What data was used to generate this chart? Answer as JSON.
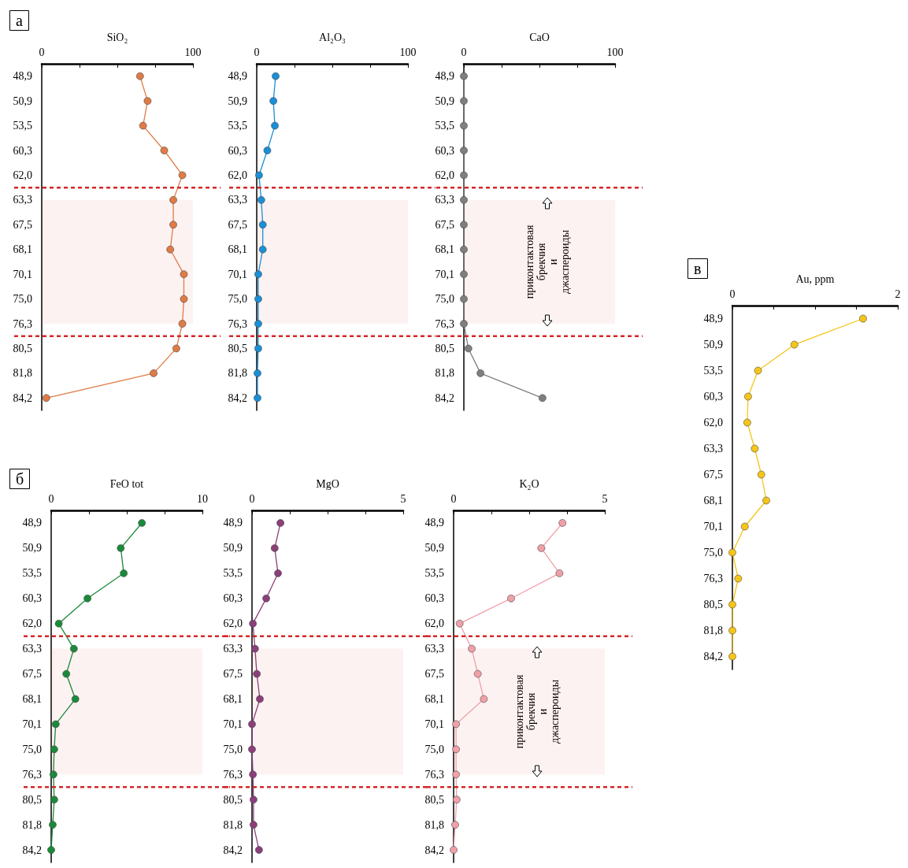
{
  "chart_data": [
    {
      "type": "line",
      "orientation": "horizontal",
      "title": "а",
      "xlabel": "SiO₂",
      "categories": [
        "48,9",
        "50,9",
        "53,5",
        "60,3",
        "62,0",
        "63,3",
        "67,5",
        "68,1",
        "70,1",
        "75,0",
        "76,3",
        "80,5",
        "81,8",
        "84,2"
      ],
      "values": [
        65,
        70,
        67,
        81,
        93,
        87,
        87,
        85,
        94,
        94,
        93,
        89,
        74,
        3
      ],
      "color": "#e07b45",
      "xlim": [
        0,
        100
      ],
      "xticks": [
        0,
        {
          "value": 25,
          "label": null
        },
        {
          "value": 50,
          "label": null
        },
        {
          "value": 75,
          "label": null
        },
        100
      ],
      "marker": "circle",
      "bands": [
        {
          "axis": "y",
          "from": "63,3",
          "to": "76,3",
          "color": "#d62728"
        }
      ]
    },
    {
      "type": "line",
      "orientation": "horizontal",
      "xlabel": "Al₂O₃",
      "categories": [
        "48,9",
        "50,9",
        "53,5",
        "60,3",
        "62,0",
        "63,3",
        "67,5",
        "68,1",
        "70,1",
        "75,0",
        "76,3",
        "80,5",
        "81,8",
        "84,2"
      ],
      "values": [
        12.5,
        11,
        12,
        7,
        1.5,
        3,
        4,
        4,
        1,
        1,
        1,
        1,
        0.5,
        0.5
      ],
      "color": "#1a8fd6",
      "xlim": [
        0,
        100
      ],
      "xticks": [
        0,
        {
          "value": 25,
          "label": null
        },
        {
          "value": 50,
          "label": null
        },
        {
          "value": 75,
          "label": null
        },
        100
      ],
      "marker": "circle",
      "bands": [
        {
          "axis": "y",
          "from": "63,3",
          "to": "76,3",
          "color": "#d62728"
        }
      ]
    },
    {
      "type": "line",
      "orientation": "horizontal",
      "xlabel": "CaO",
      "categories": [
        "48,9",
        "50,9",
        "53,5",
        "60,3",
        "62,0",
        "63,3",
        "67,5",
        "68,1",
        "70,1",
        "75,0",
        "76,3",
        "80,5",
        "81,8",
        "84,2"
      ],
      "values": [
        0,
        0,
        0,
        0,
        0,
        0,
        0,
        0,
        0,
        0,
        0,
        3,
        11,
        52
      ],
      "color": "#7f7f7f",
      "xlim": [
        0,
        100
      ],
      "xticks": [
        0,
        {
          "value": 25,
          "label": null
        },
        {
          "value": 50,
          "label": null
        },
        {
          "value": 75,
          "label": null
        },
        100
      ],
      "marker": "circle",
      "bands": [
        {
          "axis": "y",
          "from": "63,3",
          "to": "76,3",
          "color": "#d62728",
          "label": "приконтактовая брекчия и джаспероиды"
        }
      ]
    },
    {
      "type": "line",
      "orientation": "horizontal",
      "title": "б",
      "xlabel": "FeO tot",
      "categories": [
        "48,9",
        "50,9",
        "53,5",
        "60,3",
        "62,0",
        "63,3",
        "67,5",
        "68,1",
        "70,1",
        "75,0",
        "76,3",
        "80,5",
        "81,8",
        "84,2"
      ],
      "values": [
        6,
        4.6,
        4.8,
        2.4,
        0.5,
        1.5,
        1.0,
        1.6,
        0.3,
        0.2,
        0.15,
        0.2,
        0.1,
        0
      ],
      "color": "#1a8a3a",
      "xlim": [
        0,
        10
      ],
      "xticks": [
        0,
        {
          "value": 2.5,
          "label": null
        },
        {
          "value": 5,
          "label": null
        },
        {
          "value": 7.5,
          "label": null
        },
        10
      ],
      "marker": "circle",
      "bands": [
        {
          "axis": "y",
          "from": "63,3",
          "to": "76,3",
          "color": "#d62728"
        }
      ]
    },
    {
      "type": "line",
      "orientation": "horizontal",
      "xlabel": "MgO",
      "categories": [
        "48,9",
        "50,9",
        "53,5",
        "60,3",
        "62,0",
        "63,3",
        "67,5",
        "68,1",
        "70,1",
        "75,0",
        "76,3",
        "80,5",
        "81,8",
        "84,2"
      ],
      "values": [
        0.94,
        0.75,
        0.86,
        0.47,
        0.03,
        0.1,
        0.16,
        0.26,
        0,
        0,
        0.03,
        0.05,
        0.05,
        0.23
      ],
      "color": "#8b3f7a",
      "xlim": [
        0,
        5
      ],
      "xticks": [
        0,
        {
          "value": 1.25,
          "label": null
        },
        {
          "value": 2.5,
          "label": null
        },
        {
          "value": 3.75,
          "label": null
        },
        5
      ],
      "marker": "circle",
      "bands": [
        {
          "axis": "y",
          "from": "63,3",
          "to": "76,3",
          "color": "#d62728"
        }
      ]
    },
    {
      "type": "line",
      "orientation": "horizontal",
      "xlabel": "K₂O",
      "categories": [
        "48,9",
        "50,9",
        "53,5",
        "60,3",
        "62,0",
        "63,3",
        "67,5",
        "68,1",
        "70,1",
        "75,0",
        "76,3",
        "80,5",
        "81,8",
        "84,2"
      ],
      "values": [
        3.6,
        2.9,
        3.5,
        1.9,
        0.2,
        0.6,
        0.8,
        1.0,
        0.08,
        0.08,
        0.08,
        0.1,
        0.05,
        0
      ],
      "color": "#f0a0a8",
      "xlim": [
        0,
        5
      ],
      "xticks": [
        0,
        {
          "value": 1.25,
          "label": null
        },
        {
          "value": 2.5,
          "label": null
        },
        {
          "value": 3.75,
          "label": null
        },
        5
      ],
      "marker": "circle",
      "bands": [
        {
          "axis": "y",
          "from": "63,3",
          "to": "76,3",
          "color": "#d62728",
          "label": "приконтактовая брекчия и джаспероиды"
        }
      ]
    },
    {
      "type": "line",
      "orientation": "horizontal",
      "title": "в",
      "xlabel": "Au, ppm",
      "categories": [
        "48,9",
        "50,9",
        "53,5",
        "60,3",
        "62,0",
        "63,3",
        "67,5",
        "68,1",
        "70,1",
        "75,0",
        "76,3",
        "80,5",
        "81,8",
        "84,2"
      ],
      "values": [
        1.58,
        0.75,
        0.31,
        0.19,
        0.18,
        0.27,
        0.35,
        0.41,
        0.15,
        0,
        0.07,
        0,
        0,
        0
      ],
      "color": "#f5c518",
      "xlim": [
        0,
        2
      ],
      "xticks": [
        0,
        {
          "value": 0.5,
          "label": null
        },
        {
          "value": 1,
          "label": null
        },
        {
          "value": 1.5,
          "label": null
        },
        2
      ],
      "marker": "circle"
    }
  ]
}
